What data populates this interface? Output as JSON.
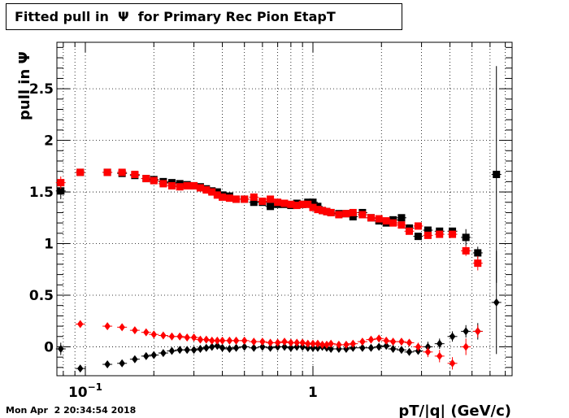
{
  "title": "Fitted pull in  Ψ  for Primary Rec Pion EtapT",
  "timestamp": "Mon Apr  2 20:34:54 2018",
  "chart_data": {
    "type": "scatter",
    "title": "Fitted pull in  Ψ  for Primary Rec Pion EtapT",
    "xlabel": "pT/|q| (GeV/c)",
    "ylabel": "pull in  Ψ",
    "x_scale": "log",
    "xlim": [
      0.075,
      7.5
    ],
    "ylim": [
      -0.28,
      2.95
    ],
    "grid": true,
    "y_ticks": [
      {
        "value": 0,
        "label": "0"
      },
      {
        "value": 0.5,
        "label": "0.5"
      },
      {
        "value": 1,
        "label": "1"
      },
      {
        "value": 1.5,
        "label": "1.5"
      },
      {
        "value": 2,
        "label": "2"
      },
      {
        "value": 2.5,
        "label": "2.5"
      }
    ],
    "x_major_ticks": [
      {
        "value": 0.1,
        "base": "10",
        "exp": "−1"
      },
      {
        "value": 1,
        "base": "1",
        "exp": ""
      }
    ],
    "series": [
      {
        "color": "#000000",
        "marker": "square",
        "x": [
          0.078,
          0.095,
          0.125,
          0.145,
          0.165,
          0.185,
          0.2,
          0.22,
          0.24,
          0.26,
          0.28,
          0.3,
          0.32,
          0.34,
          0.36,
          0.38,
          0.4,
          0.43,
          0.46,
          0.5,
          0.55,
          0.6,
          0.65,
          0.7,
          0.75,
          0.8,
          0.85,
          0.9,
          0.95,
          1.0,
          1.05,
          1.1,
          1.15,
          1.2,
          1.3,
          1.4,
          1.5,
          1.65,
          1.8,
          1.95,
          2.1,
          2.25,
          2.45,
          2.65,
          2.9,
          3.2,
          3.6,
          4.1,
          4.7,
          6.4
        ],
        "y": [
          1.51,
          1.69,
          1.69,
          1.68,
          1.66,
          1.63,
          1.62,
          1.6,
          1.59,
          1.58,
          1.57,
          1.56,
          1.55,
          1.53,
          1.51,
          1.5,
          1.47,
          1.46,
          1.43,
          1.43,
          1.4,
          1.4,
          1.36,
          1.38,
          1.38,
          1.37,
          1.39,
          1.38,
          1.4,
          1.4,
          1.36,
          1.32,
          1.31,
          1.3,
          1.29,
          1.29,
          1.26,
          1.3,
          1.25,
          1.22,
          1.2,
          1.23,
          1.25,
          1.15,
          1.07,
          1.13,
          1.12,
          1.12,
          1.06,
          1.67
        ],
        "err": [
          0.08,
          0,
          0,
          0,
          0,
          0,
          0,
          0,
          0,
          0,
          0,
          0,
          0,
          0,
          0,
          0,
          0,
          0,
          0,
          0,
          0,
          0,
          0,
          0,
          0,
          0,
          0,
          0,
          0,
          0,
          0,
          0,
          0,
          0,
          0,
          0,
          0,
          0,
          0,
          0,
          0,
          0,
          0,
          0,
          0,
          0,
          0,
          0,
          0.08,
          1.05
        ]
      },
      {
        "color": "#000000",
        "marker": "square",
        "x": [
          5.3
        ],
        "y": [
          0.91
        ],
        "err": [
          0.06
        ]
      },
      {
        "color": "#ff0000",
        "marker": "square",
        "x": [
          0.078,
          0.095,
          0.125,
          0.145,
          0.165,
          0.185,
          0.2,
          0.22,
          0.24,
          0.26,
          0.28,
          0.3,
          0.32,
          0.34,
          0.36,
          0.38,
          0.4,
          0.43,
          0.46,
          0.5,
          0.55,
          0.6,
          0.65,
          0.7,
          0.75,
          0.8,
          0.85,
          0.9,
          0.95,
          1.0,
          1.05,
          1.1,
          1.15,
          1.2,
          1.3,
          1.4,
          1.5,
          1.65,
          1.8,
          1.95,
          2.1,
          2.25,
          2.45,
          2.65,
          2.9,
          3.2,
          3.6,
          4.1,
          4.7,
          5.3
        ],
        "y": [
          1.59,
          1.69,
          1.69,
          1.69,
          1.67,
          1.63,
          1.61,
          1.58,
          1.56,
          1.55,
          1.56,
          1.56,
          1.54,
          1.52,
          1.5,
          1.47,
          1.45,
          1.44,
          1.43,
          1.43,
          1.45,
          1.41,
          1.43,
          1.4,
          1.39,
          1.38,
          1.37,
          1.38,
          1.38,
          1.35,
          1.33,
          1.32,
          1.31,
          1.3,
          1.28,
          1.29,
          1.3,
          1.28,
          1.25,
          1.24,
          1.22,
          1.2,
          1.18,
          1.12,
          1.17,
          1.08,
          1.09,
          1.09,
          0.93,
          0.81
        ],
        "err": [
          0.06,
          0,
          0,
          0,
          0,
          0,
          0,
          0,
          0,
          0,
          0,
          0,
          0,
          0,
          0,
          0,
          0,
          0,
          0,
          0,
          0,
          0,
          0,
          0,
          0,
          0,
          0,
          0,
          0,
          0,
          0,
          0,
          0,
          0,
          0,
          0,
          0,
          0,
          0,
          0,
          0,
          0,
          0,
          0,
          0,
          0,
          0,
          0,
          0.05,
          0.07
        ]
      },
      {
        "color": "#000000",
        "marker": "diamond",
        "x": [
          0.078,
          0.095,
          0.125,
          0.145,
          0.165,
          0.185,
          0.2,
          0.22,
          0.24,
          0.26,
          0.28,
          0.3,
          0.32,
          0.34,
          0.36,
          0.38,
          0.4,
          0.43,
          0.46,
          0.5,
          0.55,
          0.6,
          0.65,
          0.7,
          0.75,
          0.8,
          0.85,
          0.9,
          0.95,
          1.0,
          1.05,
          1.1,
          1.15,
          1.2,
          1.3,
          1.4,
          1.5,
          1.65,
          1.8,
          1.95,
          2.1,
          2.25,
          2.45,
          2.65,
          2.9,
          3.2,
          3.6,
          4.1,
          4.7,
          5.3,
          6.4
        ],
        "y": [
          -0.02,
          -0.21,
          -0.17,
          -0.16,
          -0.12,
          -0.09,
          -0.08,
          -0.06,
          -0.04,
          -0.03,
          -0.03,
          -0.03,
          -0.02,
          -0.01,
          0.0,
          0.01,
          -0.01,
          -0.02,
          -0.01,
          0.0,
          -0.01,
          0.0,
          -0.01,
          0.0,
          0.0,
          -0.01,
          0.0,
          0.0,
          -0.01,
          -0.01,
          -0.01,
          0.0,
          -0.01,
          -0.02,
          -0.02,
          -0.02,
          -0.01,
          -0.01,
          -0.01,
          0.0,
          0.01,
          -0.02,
          -0.03,
          -0.05,
          -0.04,
          0.0,
          0.03,
          0.1,
          0.15,
          0.15,
          0.43
        ],
        "err": [
          0.06,
          0,
          0,
          0,
          0,
          0,
          0,
          0,
          0,
          0,
          0,
          0,
          0,
          0,
          0,
          0,
          0,
          0,
          0,
          0,
          0,
          0,
          0,
          0,
          0,
          0,
          0,
          0,
          0,
          0,
          0,
          0,
          0,
          0,
          0,
          0,
          0,
          0,
          0,
          0,
          0,
          0,
          0,
          0,
          0,
          0.05,
          0.05,
          0.05,
          0.06,
          0.08,
          0.5
        ]
      },
      {
        "color": "#ff0000",
        "marker": "diamond",
        "x": [
          0.095,
          0.125,
          0.145,
          0.165,
          0.185,
          0.2,
          0.22,
          0.24,
          0.26,
          0.28,
          0.3,
          0.32,
          0.34,
          0.36,
          0.38,
          0.4,
          0.43,
          0.46,
          0.5,
          0.55,
          0.6,
          0.65,
          0.7,
          0.75,
          0.8,
          0.85,
          0.9,
          0.95,
          1.0,
          1.05,
          1.1,
          1.15,
          1.2,
          1.3,
          1.4,
          1.5,
          1.65,
          1.8,
          1.95,
          2.1,
          2.25,
          2.45,
          2.65,
          2.9,
          3.2,
          3.6,
          4.1,
          4.7,
          5.3
        ],
        "y": [
          0.22,
          0.2,
          0.19,
          0.16,
          0.14,
          0.12,
          0.11,
          0.1,
          0.1,
          0.09,
          0.09,
          0.07,
          0.07,
          0.06,
          0.06,
          0.06,
          0.06,
          0.06,
          0.06,
          0.05,
          0.05,
          0.04,
          0.04,
          0.05,
          0.04,
          0.04,
          0.04,
          0.03,
          0.03,
          0.03,
          0.02,
          0.02,
          0.03,
          0.02,
          0.02,
          0.03,
          0.05,
          0.07,
          0.08,
          0.06,
          0.05,
          0.05,
          0.04,
          0.0,
          -0.05,
          -0.09,
          -0.16,
          0.0,
          0.15
        ],
        "err": [
          0,
          0,
          0,
          0,
          0,
          0,
          0,
          0,
          0,
          0,
          0,
          0,
          0,
          0,
          0,
          0,
          0,
          0,
          0,
          0,
          0,
          0,
          0,
          0,
          0,
          0,
          0,
          0,
          0,
          0,
          0,
          0,
          0,
          0,
          0,
          0,
          0,
          0,
          0,
          0,
          0,
          0,
          0,
          0.04,
          0.05,
          0.06,
          0.06,
          0.08,
          0.06
        ]
      }
    ]
  }
}
